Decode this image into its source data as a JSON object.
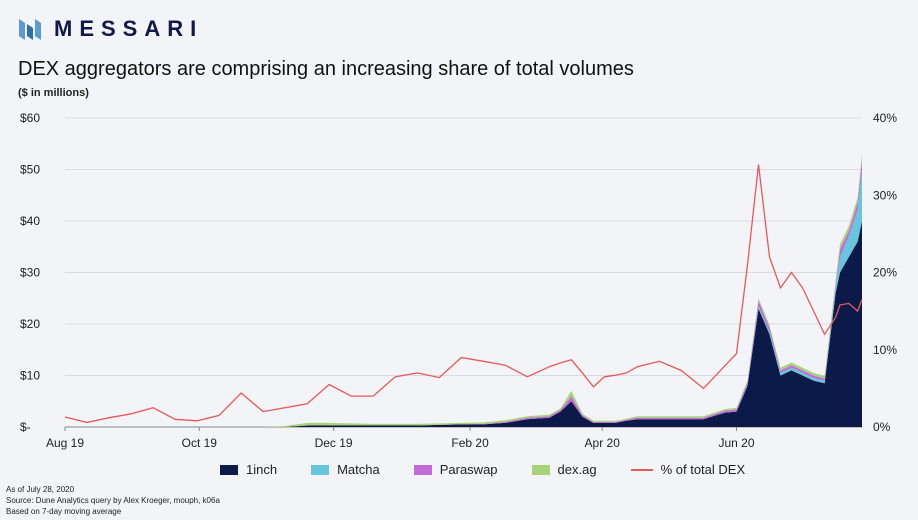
{
  "header": {
    "brand": "MESSARI",
    "title": "DEX aggregators are comprising an increasing share of total volumes",
    "units": "($ in millions)"
  },
  "colors": {
    "1inch": "#0c1a4a",
    "Matcha": "#66c6dc",
    "Paraswap": "#c36bd8",
    "dex.ag": "#a8d27a",
    "pct": "#e8585a",
    "brand": "#10184a"
  },
  "legend": [
    "1inch",
    "Matcha",
    "Paraswap",
    "dex.ag",
    "% of total DEX"
  ],
  "footnotes": [
    "As of July 28, 2020",
    "Source: Dune Analytics query by Alex Kroeger, mouph, k06a",
    "Based on 7-day moving average"
  ],
  "chart_data": {
    "type": "area",
    "title": "DEX aggregators are comprising an increasing share of total volumes",
    "ylabel": "$ in millions",
    "y2label": "% of total DEX",
    "ylim": [
      0,
      60
    ],
    "y2lim": [
      0,
      40
    ],
    "yticks": [
      "$-",
      "$10",
      "$20",
      "$30",
      "$40",
      "$50",
      "$60"
    ],
    "y2ticks": [
      "0%",
      "10%",
      "20%",
      "30%",
      "40%"
    ],
    "xticks": [
      {
        "label": "Aug 19",
        "day": 0
      },
      {
        "label": "Oct 19",
        "day": 61
      },
      {
        "label": "Dec 19",
        "day": 122
      },
      {
        "label": "Feb 20",
        "day": 184
      },
      {
        "label": "Apr 20",
        "day": 244
      },
      {
        "label": "Jun 20",
        "day": 305
      }
    ],
    "x_days": [
      0,
      10,
      20,
      30,
      40,
      50,
      60,
      70,
      80,
      90,
      100,
      110,
      120,
      130,
      140,
      150,
      160,
      170,
      180,
      190,
      200,
      210,
      220,
      225,
      230,
      235,
      240,
      245,
      250,
      255,
      260,
      270,
      280,
      290,
      295,
      300,
      305,
      310,
      315,
      320,
      325,
      330,
      335,
      340,
      345,
      350,
      352,
      356,
      360,
      362
    ],
    "series": [
      {
        "name": "1inch",
        "values": [
          0,
          0,
          0,
          0,
          0,
          0,
          0,
          0,
          0,
          0,
          0,
          0.3,
          0.3,
          0.3,
          0.3,
          0.3,
          0.3,
          0.4,
          0.5,
          0.5,
          0.8,
          1.5,
          1.8,
          3,
          5,
          2,
          0.8,
          0.8,
          0.8,
          1.2,
          1.5,
          1.5,
          1.5,
          1.5,
          2.2,
          2.8,
          3,
          8,
          23,
          18,
          10,
          11,
          10,
          9,
          8.5,
          26,
          30,
          33,
          36,
          40
        ]
      },
      {
        "name": "Matcha",
        "values": [
          0,
          0,
          0,
          0,
          0,
          0,
          0,
          0,
          0,
          0,
          0,
          0,
          0,
          0,
          0,
          0,
          0,
          0,
          0,
          0,
          0,
          0,
          0,
          0,
          0,
          0,
          0,
          0,
          0,
          0,
          0,
          0,
          0,
          0,
          0,
          0,
          0,
          0.2,
          0.5,
          0.5,
          0.5,
          0.5,
          0.5,
          0.5,
          0.5,
          1,
          3,
          4,
          6,
          10
        ]
      },
      {
        "name": "Paraswap",
        "values": [
          0,
          0,
          0,
          0,
          0,
          0,
          0,
          0,
          0,
          0,
          0,
          0,
          0,
          0,
          0,
          0,
          0,
          0,
          0,
          0.1,
          0.2,
          0.3,
          0.3,
          0.3,
          1,
          0.3,
          0.2,
          0.2,
          0.2,
          0.2,
          0.3,
          0.3,
          0.3,
          0.3,
          0.3,
          0.4,
          0.4,
          0.5,
          1,
          0.8,
          0.5,
          0.5,
          0.5,
          0.5,
          0.4,
          0.6,
          1.5,
          1,
          1.5,
          2
        ]
      },
      {
        "name": "dex.ag",
        "values": [
          0,
          0,
          0,
          0,
          0,
          0,
          0,
          0,
          0,
          0,
          0.2,
          0.5,
          0.5,
          0.4,
          0.3,
          0.3,
          0.3,
          0.3,
          0.3,
          0.3,
          0.3,
          0.3,
          0.3,
          0.3,
          1,
          0.3,
          0.2,
          0.2,
          0.2,
          0.2,
          0.3,
          0.3,
          0.3,
          0.3,
          0.3,
          0.3,
          0.3,
          0.3,
          0.5,
          0.5,
          0.5,
          0.5,
          0.5,
          0.5,
          0.5,
          0.8,
          1,
          1,
          1,
          1
        ]
      },
      {
        "name": "% of total DEX",
        "axis": "right",
        "values": [
          1.3,
          0.6,
          1.2,
          1.7,
          2.5,
          1,
          0.8,
          1.5,
          4.4,
          2,
          2.5,
          3,
          5.5,
          4,
          4,
          6.5,
          7,
          6.4,
          9,
          8.5,
          8,
          6.5,
          7.8,
          8.3,
          8.7,
          7,
          5.2,
          6.5,
          6.7,
          7,
          7.8,
          8.5,
          7.3,
          5,
          6.5,
          8,
          9.5,
          21,
          34,
          22,
          18,
          20,
          18,
          15,
          12,
          14.2,
          15.8,
          16,
          15,
          16.5
        ]
      }
    ]
  }
}
